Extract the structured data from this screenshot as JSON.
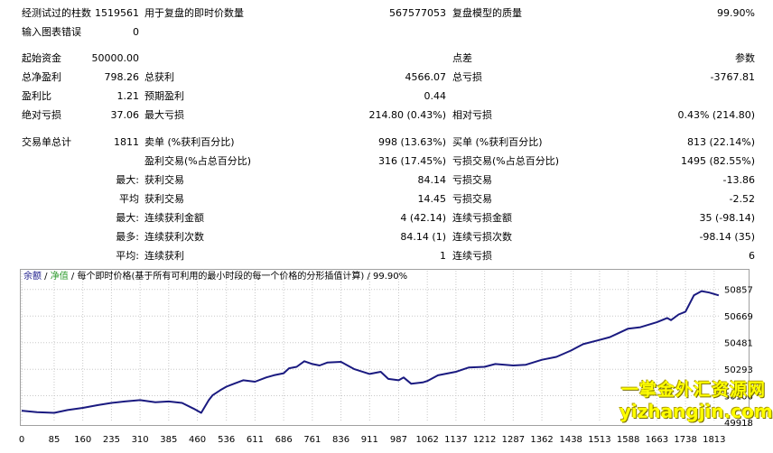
{
  "report": {
    "row1": {
      "bars_label": "经测试过的柱数",
      "bars_value": "1519561",
      "ticks_label": "用于复盘的即时价数量",
      "ticks_value": "567577053",
      "quality_label": "复盘模型的质量",
      "quality_value": "99.90%"
    },
    "row2": {
      "errors_label": "输入图表错误",
      "errors_value": "0"
    },
    "row3": {
      "deposit_label": "起始资金",
      "deposit_value": "50000.00",
      "spread_label": "点差",
      "spread_value": "参数"
    },
    "row4": {
      "net_label": "总净盈利",
      "net_value": "798.26",
      "gross_profit_label": "总获利",
      "gross_profit_value": "4566.07",
      "gross_loss_label": "总亏损",
      "gross_loss_value": "-3767.81"
    },
    "row5": {
      "pf_label": "盈利比",
      "pf_value": "1.21",
      "payoff_label": "预期盈利",
      "payoff_value": "0.44"
    },
    "row6": {
      "abs_dd_label": "绝对亏损",
      "abs_dd_value": "37.06",
      "max_dd_label": "最大亏损",
      "max_dd_value": "214.80 (0.43%)",
      "rel_dd_label": "相对亏损",
      "rel_dd_value": "0.43% (214.80)"
    },
    "row7": {
      "trades_label": "交易单总计",
      "trades_value": "1811",
      "short_label": "卖单 (%获利百分比)",
      "short_value": "998 (13.63%)",
      "long_label": "买单 (%获利百分比)",
      "long_value": "813 (22.14%)"
    },
    "row8": {
      "profit_trades_label": "盈利交易(%占总百分比)",
      "profit_trades_value": "316 (17.45%)",
      "loss_trades_label": "亏损交易(%占总百分比)",
      "loss_trades_value": "1495 (82.55%)"
    },
    "row9": {
      "prefix": "最大:",
      "profit_label": "获利交易",
      "profit_value": "84.14",
      "loss_label": "亏损交易",
      "loss_value": "-13.86"
    },
    "row10": {
      "prefix": "平均",
      "profit_label": "获利交易",
      "profit_value": "14.45",
      "loss_label": "亏损交易",
      "loss_value": "-2.52"
    },
    "row11": {
      "prefix": "最大:",
      "profit_label": "连续获利金额",
      "profit_value": "4 (42.14)",
      "loss_label": "连续亏损金额",
      "loss_value": "35 (-98.14)"
    },
    "row12": {
      "prefix": "最多:",
      "profit_label": "连续获利次数",
      "profit_value": "84.14 (1)",
      "loss_label": "连续亏损次数",
      "loss_value": "-98.14 (35)"
    },
    "row13": {
      "prefix": "平均:",
      "profit_label": "连续获利",
      "profit_value": "1",
      "loss_label": "连续亏损",
      "loss_value": "6"
    }
  },
  "chart_caption": {
    "balance": "余额",
    "sep1": " / ",
    "equity": "净值",
    "rest": " / 每个即时价格(基于所有可利用的最小时段的每一个价格的分形插值计算) / 99.90%"
  },
  "watermark": {
    "line1": "一掌金外汇资源网",
    "line2": "yizhangjin.com"
  },
  "colors": {
    "line": "#1a1a80",
    "grid": "#c8c8c8",
    "panel_border": "#a0a0a0",
    "watermark": "#ffff00"
  },
  "chart_data": {
    "type": "line",
    "title": "",
    "xlabel": "",
    "ylabel": "",
    "x_ticks": [
      "0",
      "85",
      "160",
      "235",
      "310",
      "385",
      "460",
      "536",
      "611",
      "686",
      "761",
      "836",
      "911",
      "987",
      "1062",
      "1137",
      "1212",
      "1287",
      "1362",
      "1438",
      "1513",
      "1588",
      "1663",
      "1738",
      "1813"
    ],
    "y_ticks": [
      "50857",
      "50669",
      "50481",
      "50293",
      "50106",
      "49918"
    ],
    "xlim": [
      0,
      1830
    ],
    "ylim": [
      49918,
      50900
    ],
    "series": [
      {
        "name": "余额",
        "x": [
          0,
          40,
          85,
          120,
          160,
          200,
          235,
          270,
          310,
          350,
          385,
          420,
          450,
          470,
          490,
          500,
          520,
          536,
          560,
          580,
          611,
          640,
          660,
          686,
          700,
          720,
          740,
          761,
          780,
          800,
          836,
          870,
          911,
          940,
          960,
          987,
          1000,
          1020,
          1050,
          1062,
          1090,
          1137,
          1170,
          1212,
          1240,
          1287,
          1320,
          1362,
          1400,
          1438,
          1470,
          1513,
          1540,
          1560,
          1588,
          1620,
          1663,
          1690,
          1700,
          1720,
          1738,
          1760,
          1780,
          1800,
          1813,
          1825
        ],
        "y": [
          50000,
          49990,
          49985,
          50005,
          50020,
          50040,
          50055,
          50065,
          50075,
          50060,
          50065,
          50055,
          50015,
          49985,
          50075,
          50110,
          50145,
          50170,
          50195,
          50215,
          50205,
          50235,
          50250,
          50265,
          50300,
          50310,
          50350,
          50330,
          50320,
          50340,
          50345,
          50295,
          50260,
          50275,
          50225,
          50215,
          50235,
          50190,
          50200,
          50210,
          50250,
          50275,
          50305,
          50310,
          50330,
          50320,
          50325,
          50360,
          50380,
          50425,
          50470,
          50500,
          50520,
          50545,
          50580,
          50590,
          50625,
          50655,
          50640,
          50680,
          50700,
          50815,
          50845,
          50835,
          50825,
          50815
        ]
      }
    ],
    "grid": true,
    "legend": "top-left"
  }
}
